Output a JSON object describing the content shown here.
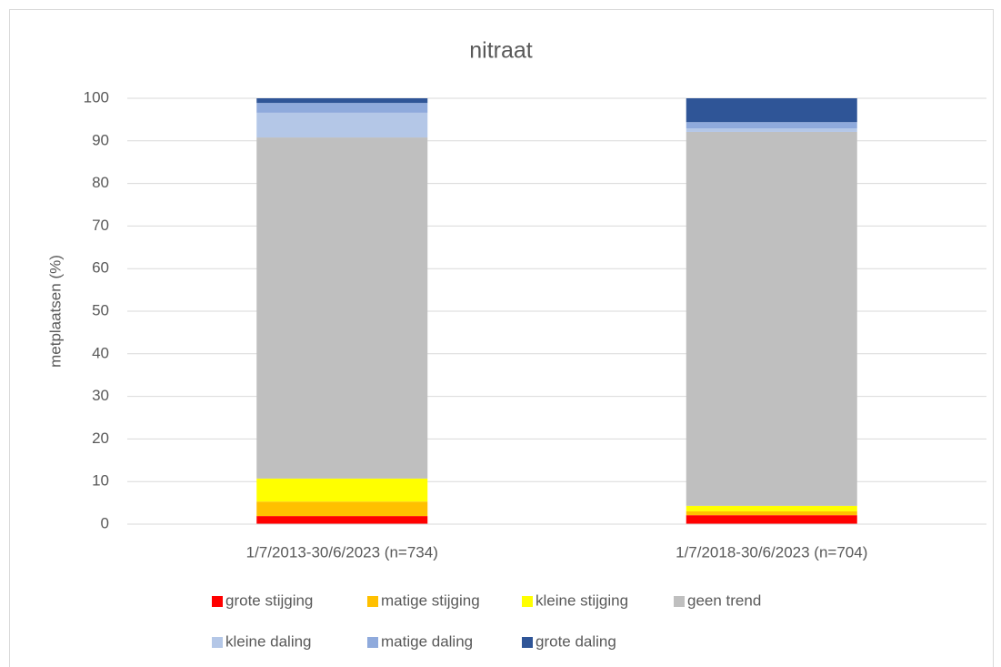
{
  "chart_data": {
    "type": "stacked_bar",
    "title": "nitraat",
    "y_label": "metplaatsen (%)",
    "categories": [
      "1/7/2013-30/6/2023 (n=734)",
      "1/7/2018-30/6/2023 (n=704)"
    ],
    "series": [
      {
        "name": "grote stijging",
        "color": "#ff0000",
        "values": [
          1.9,
          2.1
        ]
      },
      {
        "name": "matige stijging",
        "color": "#ffc000",
        "values": [
          3.4,
          0.9
        ]
      },
      {
        "name": "kleine stijging",
        "color": "#ffff00",
        "values": [
          5.4,
          1.3
        ]
      },
      {
        "name": "geen trend",
        "color": "#bfbfbf",
        "values": [
          80.1,
          87.8
        ]
      },
      {
        "name": "kleine daling",
        "color": "#b4c7e7",
        "values": [
          5.8,
          0.8
        ]
      },
      {
        "name": "matige daling",
        "color": "#8faadc",
        "values": [
          2.3,
          1.5
        ]
      },
      {
        "name": "grote daling",
        "color": "#2f5597",
        "values": [
          1.1,
          5.6
        ]
      }
    ],
    "ylim": [
      0,
      100
    ],
    "yticks": [
      0,
      10,
      20,
      30,
      40,
      50,
      60,
      70,
      80,
      90,
      100
    ],
    "grid": true,
    "legend": "bottom"
  }
}
